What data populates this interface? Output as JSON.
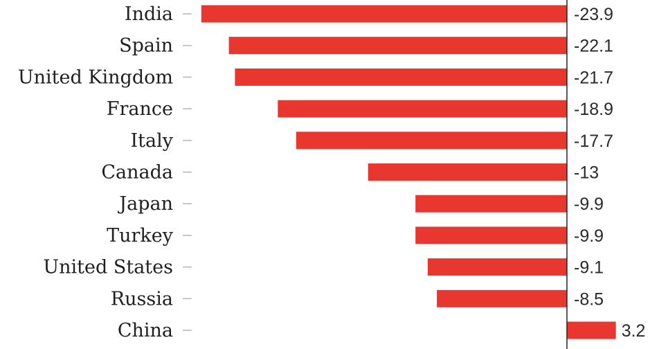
{
  "chart_data": {
    "type": "bar",
    "orientation": "horizontal",
    "categories": [
      "India",
      "Spain",
      "United Kingdom",
      "France",
      "Italy",
      "Canada",
      "Japan",
      "Turkey",
      "United States",
      "Russia",
      "China"
    ],
    "values": [
      -23.9,
      -22.1,
      -21.7,
      -18.9,
      -17.7,
      -13,
      -9.9,
      -9.9,
      -9.1,
      -8.5,
      3.2
    ],
    "value_labels": [
      "-23.9",
      "-22.1",
      "-21.7",
      "-18.9",
      "-17.7",
      "-13",
      "-9.9",
      "-9.9",
      "-9.1",
      "-8.5",
      "3.2"
    ],
    "xlim": [
      -24,
      3.2
    ],
    "grid": false,
    "legend": "none",
    "colors": {
      "bar": "#e8372f",
      "axis": "#222222",
      "tick": "#b5b5b5",
      "text": "#1f1f1f"
    }
  }
}
